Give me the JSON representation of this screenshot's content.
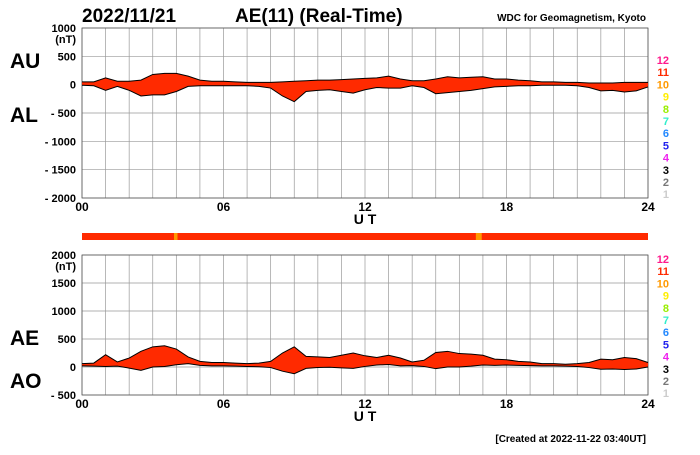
{
  "header": {
    "date": "2022/11/21",
    "title": "AE(11) (Real-Time)",
    "source": "WDC for Geomagnetism, Kyoto"
  },
  "footer": {
    "created": "[Created at 2022-11-22 03:40UT]"
  },
  "colors": {
    "fill": "#ff2a00",
    "fill_alt": "#ff9900",
    "grid": "#999999",
    "outline": "#000000"
  },
  "legend": [
    {
      "label": "12",
      "color": "#ff1a8c"
    },
    {
      "label": "11",
      "color": "#ff2a00"
    },
    {
      "label": "10",
      "color": "#ff9900"
    },
    {
      "label": "9",
      "color": "#ffee00"
    },
    {
      "label": "8",
      "color": "#99ee00"
    },
    {
      "label": "7",
      "color": "#33eecc"
    },
    {
      "label": "6",
      "color": "#2288ff"
    },
    {
      "label": "5",
      "color": "#2222ee"
    },
    {
      "label": "4",
      "color": "#ee22ee"
    },
    {
      "label": "3",
      "color": "#000000"
    },
    {
      "label": "2",
      "color": "#777777"
    },
    {
      "label": "1",
      "color": "#cccccc"
    }
  ],
  "chart_data": [
    {
      "type": "area",
      "title": "AU / AL",
      "upper_label": "AU",
      "lower_label": "AL",
      "unit": "(nT)",
      "xlabel": "U T",
      "xlim": [
        0,
        24
      ],
      "ylim": [
        -2000,
        1000
      ],
      "yticks": [
        1000,
        500,
        0,
        -500,
        -1000,
        -1500,
        -2000
      ],
      "ytick_labels": [
        "1000",
        "500",
        "0",
        "- 500",
        "- 1000",
        "- 1500",
        "- 2000"
      ],
      "xticks": [
        0,
        6,
        12,
        18,
        24
      ],
      "xtick_labels": [
        "00",
        "06",
        "12",
        "18",
        "24"
      ],
      "grid": true,
      "x": [
        0,
        0.5,
        1,
        1.5,
        2,
        2.5,
        3,
        3.5,
        4,
        4.5,
        5,
        5.5,
        6,
        6.5,
        7,
        7.5,
        8,
        8.5,
        9,
        9.5,
        10,
        10.5,
        11,
        11.5,
        12,
        12.5,
        13,
        13.5,
        14,
        14.5,
        15,
        15.5,
        16,
        16.5,
        17,
        17.5,
        18,
        18.5,
        19,
        19.5,
        20,
        20.5,
        21,
        21.5,
        22,
        22.5,
        23,
        23.5,
        24
      ],
      "series": [
        {
          "name": "AU",
          "values": [
            50,
            50,
            120,
            60,
            60,
            80,
            180,
            200,
            200,
            150,
            80,
            60,
            60,
            50,
            40,
            40,
            40,
            50,
            60,
            70,
            80,
            80,
            90,
            100,
            110,
            120,
            150,
            100,
            70,
            70,
            100,
            140,
            120,
            130,
            140,
            100,
            100,
            80,
            70,
            50,
            50,
            40,
            40,
            30,
            30,
            30,
            40,
            40,
            40
          ]
        },
        {
          "name": "AL",
          "values": [
            -10,
            -20,
            -100,
            -30,
            -100,
            -200,
            -180,
            -180,
            -120,
            -30,
            -20,
            -20,
            -20,
            -20,
            -20,
            -30,
            -60,
            -200,
            -300,
            -120,
            -100,
            -90,
            -120,
            -150,
            -90,
            -50,
            -60,
            -60,
            -20,
            -50,
            -160,
            -140,
            -120,
            -100,
            -70,
            -40,
            -30,
            -20,
            -20,
            -10,
            -10,
            -10,
            -20,
            -50,
            -110,
            -100,
            -130,
            -110,
            -40
          ]
        }
      ]
    },
    {
      "type": "area",
      "title": "AE / AO",
      "upper_label": "AE",
      "lower_label": "AO",
      "unit": "(nT)",
      "xlabel": "U T",
      "xlim": [
        0,
        24
      ],
      "ylim": [
        -500,
        2000
      ],
      "yticks": [
        2000,
        1500,
        1000,
        500,
        0,
        -500
      ],
      "ytick_labels": [
        "2000",
        "1500",
        "1000",
        "500",
        "0",
        "- 500"
      ],
      "xticks": [
        0,
        6,
        12,
        18,
        24
      ],
      "xtick_labels": [
        "00",
        "06",
        "12",
        "18",
        "24"
      ],
      "grid": true,
      "x": [
        0,
        0.5,
        1,
        1.5,
        2,
        2.5,
        3,
        3.5,
        4,
        4.5,
        5,
        5.5,
        6,
        6.5,
        7,
        7.5,
        8,
        8.5,
        9,
        9.5,
        10,
        10.5,
        11,
        11.5,
        12,
        12.5,
        13,
        13.5,
        14,
        14.5,
        15,
        15.5,
        16,
        16.5,
        17,
        17.5,
        18,
        18.5,
        19,
        19.5,
        20,
        20.5,
        21,
        21.5,
        22,
        22.5,
        23,
        23.5,
        24
      ],
      "series": [
        {
          "name": "AE",
          "values": [
            60,
            70,
            220,
            90,
            160,
            280,
            360,
            380,
            320,
            180,
            100,
            80,
            80,
            70,
            60,
            70,
            100,
            250,
            360,
            190,
            180,
            170,
            210,
            250,
            200,
            170,
            210,
            160,
            90,
            120,
            260,
            280,
            240,
            230,
            210,
            140,
            130,
            100,
            90,
            60,
            60,
            50,
            60,
            80,
            140,
            130,
            170,
            150,
            80
          ]
        },
        {
          "name": "AO",
          "values": [
            20,
            15,
            10,
            15,
            -20,
            -60,
            0,
            10,
            40,
            60,
            30,
            20,
            20,
            15,
            10,
            5,
            -10,
            -75,
            -120,
            -25,
            -10,
            -5,
            -15,
            -25,
            10,
            35,
            45,
            20,
            25,
            10,
            -30,
            0,
            0,
            15,
            35,
            30,
            35,
            30,
            25,
            20,
            20,
            15,
            10,
            -10,
            -40,
            -35,
            -45,
            -35,
            0
          ]
        }
      ]
    }
  ],
  "station_bar": {
    "default_count": 11,
    "segments": [
      {
        "start": 3.9,
        "end": 4.05,
        "count": 10
      },
      {
        "start": 16.7,
        "end": 16.95,
        "count": 10
      }
    ]
  }
}
